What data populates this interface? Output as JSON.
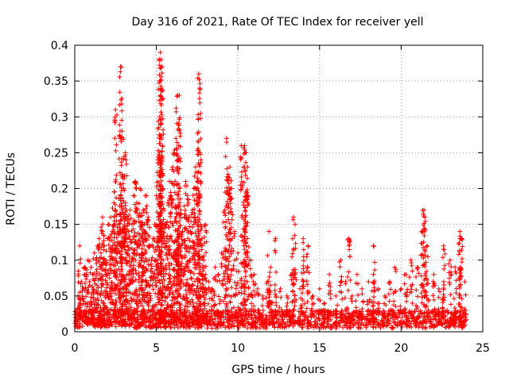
{
  "chart_data": {
    "type": "scatter",
    "title": "Day 316 of 2021, Rate Of TEC Index for receiver yell",
    "xlabel": "GPS time / hours",
    "ylabel": "ROTI / TECUs",
    "xlim": [
      0,
      25
    ],
    "ylim": [
      0,
      0.4
    ],
    "xticks": [
      0,
      5,
      10,
      15,
      20,
      25
    ],
    "xtick_labels": [
      "0",
      "5",
      "10",
      "15",
      "20",
      "25"
    ],
    "yticks": [
      0,
      0.05,
      0.1,
      0.15,
      0.2,
      0.25,
      0.3,
      0.35,
      0.4
    ],
    "ytick_labels": [
      "0",
      "0.05",
      "0.1",
      "0.15",
      "0.2",
      "0.25",
      "0.3",
      "0.35",
      "0.4"
    ],
    "grid": true,
    "marker": "+",
    "series": [
      {
        "name": "ROTI",
        "color": "#ff0000",
        "x": [
          0.1,
          0.2,
          0.3,
          0.4,
          0.5,
          0.6,
          0.7,
          0.8,
          0.9,
          1.0,
          1.1,
          1.2,
          1.3,
          1.4,
          1.5,
          1.6,
          1.7,
          1.8,
          1.9,
          2.0,
          2.1,
          2.2,
          2.3,
          2.4,
          2.5,
          2.6,
          2.7,
          2.8,
          2.9,
          3.0,
          3.1,
          3.2,
          3.3,
          3.4,
          3.5,
          3.6,
          3.7,
          3.8,
          3.9,
          4.0,
          4.1,
          4.2,
          4.3,
          4.4,
          4.5,
          4.6,
          4.7,
          4.8,
          4.9,
          5.0,
          5.1,
          5.2,
          5.3,
          5.4,
          5.5,
          5.6,
          5.7,
          5.8,
          5.9,
          6.0,
          6.1,
          6.2,
          6.3,
          6.4,
          6.5,
          6.6,
          6.7,
          6.8,
          6.9,
          7.0,
          7.1,
          7.2,
          7.3,
          7.4,
          7.5,
          7.6,
          7.7,
          7.8,
          7.9,
          8.0,
          8.2,
          8.4,
          8.6,
          8.8,
          9.0,
          9.2,
          9.4,
          9.6,
          9.8,
          10.0,
          10.2,
          10.4,
          10.6,
          10.8,
          11.0,
          11.2,
          11.5,
          11.8,
          12.0,
          12.3,
          12.6,
          13.0,
          13.3,
          13.5,
          13.8,
          14.0,
          14.3,
          14.6,
          15.0,
          15.3,
          15.6,
          16.0,
          16.3,
          16.6,
          17.0,
          17.3,
          17.6,
          18.0,
          18.3,
          18.6,
          19.0,
          19.3,
          19.6,
          20.0,
          20.3,
          20.6,
          21.0,
          21.3,
          21.6,
          22.0,
          22.3,
          22.6,
          23.0,
          23.3,
          23.6,
          23.9,
          0.3,
          2.5,
          2.8,
          2.9,
          3.1,
          5.2,
          5.25,
          5.3,
          5.35,
          6.3,
          6.4,
          7.6,
          7.65,
          9.3,
          9.5,
          10.4,
          10.5,
          13.4,
          14.0,
          21.4,
          21.45,
          23.6,
          23.7,
          1.7,
          4.2,
          8.0,
          11.9,
          16.8,
          18.3,
          22.6
        ],
        "y": [
          0.03,
          0.05,
          0.04,
          0.07,
          0.06,
          0.09,
          0.08,
          0.1,
          0.07,
          0.09,
          0.08,
          0.11,
          0.1,
          0.12,
          0.13,
          0.11,
          0.14,
          0.12,
          0.1,
          0.13,
          0.15,
          0.16,
          0.14,
          0.18,
          0.17,
          0.12,
          0.15,
          0.19,
          0.22,
          0.2,
          0.18,
          0.16,
          0.14,
          0.17,
          0.15,
          0.19,
          0.21,
          0.18,
          0.16,
          0.2,
          0.15,
          0.17,
          0.14,
          0.19,
          0.16,
          0.12,
          0.1,
          0.13,
          0.15,
          0.19,
          0.24,
          0.27,
          0.22,
          0.2,
          0.15,
          0.12,
          0.18,
          0.21,
          0.19,
          0.23,
          0.25,
          0.27,
          0.23,
          0.2,
          0.17,
          0.14,
          0.16,
          0.21,
          0.19,
          0.16,
          0.14,
          0.17,
          0.2,
          0.23,
          0.21,
          0.18,
          0.15,
          0.12,
          0.1,
          0.08,
          0.07,
          0.06,
          0.09,
          0.08,
          0.11,
          0.17,
          0.22,
          0.2,
          0.14,
          0.11,
          0.26,
          0.23,
          0.19,
          0.1,
          0.08,
          0.06,
          0.05,
          0.07,
          0.09,
          0.13,
          0.06,
          0.05,
          0.08,
          0.15,
          0.06,
          0.07,
          0.12,
          0.05,
          0.06,
          0.04,
          0.08,
          0.05,
          0.1,
          0.07,
          0.05,
          0.08,
          0.06,
          0.07,
          0.08,
          0.06,
          0.05,
          0.07,
          0.09,
          0.06,
          0.08,
          0.1,
          0.09,
          0.14,
          0.12,
          0.08,
          0.06,
          0.07,
          0.1,
          0.09,
          0.13,
          0.07,
          0.12,
          0.31,
          0.37,
          0.28,
          0.25,
          0.35,
          0.39,
          0.38,
          0.37,
          0.33,
          0.33,
          0.36,
          0.34,
          0.27,
          0.23,
          0.26,
          0.25,
          0.16,
          0.13,
          0.17,
          0.16,
          0.14,
          0.13,
          0.16,
          0.17,
          0.15,
          0.14,
          0.13,
          0.12,
          0.12
        ],
        "background_band": {
          "x_range": [
            0,
            24
          ],
          "y_baseline_range": [
            0.005,
            0.03
          ],
          "note": "dense floor of points across the whole day"
        }
      }
    ]
  }
}
